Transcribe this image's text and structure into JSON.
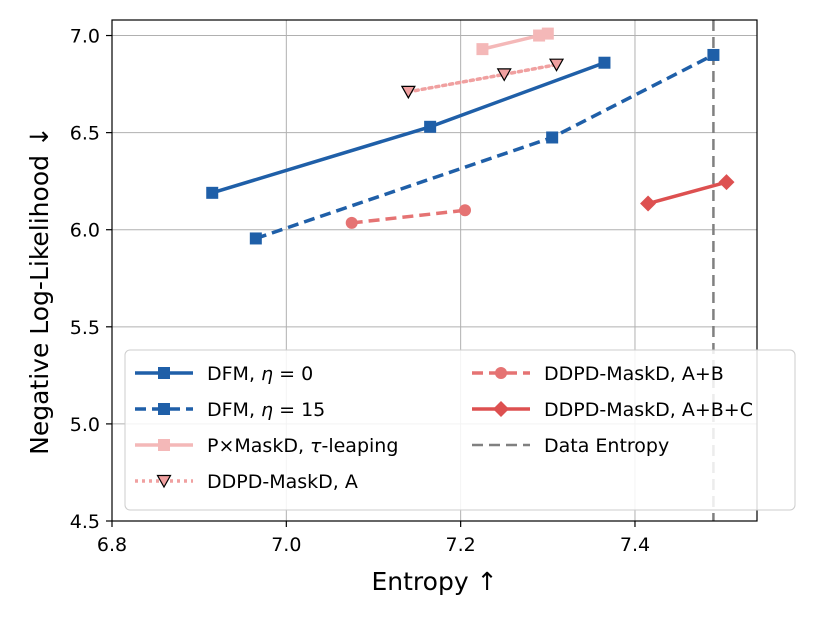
{
  "chart_data": {
    "type": "line",
    "xlabel": "Entropy ↑",
    "ylabel": "Negative Log-Likelihood ↓",
    "xlim": [
      6.8,
      7.54
    ],
    "ylim": [
      4.5,
      7.08
    ],
    "xticks": [
      6.8,
      7.0,
      7.2,
      7.4
    ],
    "xtick_labels": [
      "6.8",
      "7.0",
      "7.2",
      "7.4"
    ],
    "yticks": [
      4.5,
      5.0,
      5.5,
      6.0,
      6.5,
      7.0
    ],
    "ytick_labels": [
      "4.5",
      "5.0",
      "5.5",
      "6.0",
      "6.5",
      "7.0"
    ],
    "grid": true,
    "legend_location": "lower-left",
    "series": [
      {
        "name_parts": [
          "DFM, ",
          "η",
          " = 0"
        ],
        "name_italic": [
          false,
          true,
          false
        ],
        "color": "#1f5fa8",
        "dash": "solid",
        "marker": "square",
        "marker_fill": "#1f5fa8",
        "x": [
          6.915,
          7.165,
          7.365
        ],
        "y": [
          6.19,
          6.53,
          6.86
        ]
      },
      {
        "name_parts": [
          "DFM, ",
          "η",
          " = 15"
        ],
        "name_italic": [
          false,
          true,
          false
        ],
        "color": "#1f5fa8",
        "dash": "dashed",
        "marker": "square",
        "marker_fill": "#1f5fa8",
        "x": [
          6.965,
          7.305,
          7.49
        ],
        "y": [
          5.955,
          6.475,
          6.9
        ]
      },
      {
        "name_parts": [
          "P×MaskD, ",
          "τ",
          "-leaping"
        ],
        "name_italic": [
          false,
          true,
          false
        ],
        "color": "#f4b8b8",
        "dash": "solid",
        "marker": "square",
        "marker_fill": "#f4b8b8",
        "x": [
          7.225,
          7.29,
          7.3
        ],
        "y": [
          6.93,
          7.0,
          7.01
        ]
      },
      {
        "name_parts": [
          "DDPD-MaskD, A"
        ],
        "name_italic": [
          false
        ],
        "color": "#f0a0a0",
        "dash": "dotted",
        "marker": "triangle-down",
        "marker_fill": "#f0a0a0",
        "x": [
          7.14,
          7.25,
          7.31
        ],
        "y": [
          6.71,
          6.8,
          6.85
        ]
      },
      {
        "name_parts": [
          "DDPD-MaskD, A+B"
        ],
        "name_italic": [
          false
        ],
        "color": "#e57373",
        "dash": "dashed",
        "marker": "circle",
        "marker_fill": "#e57373",
        "x": [
          7.075,
          7.205
        ],
        "y": [
          6.035,
          6.1
        ]
      },
      {
        "name_parts": [
          "DDPD-MaskD, A+B+C"
        ],
        "name_italic": [
          false
        ],
        "color": "#dd5050",
        "dash": "solid",
        "marker": "diamond",
        "marker_fill": "#dd5050",
        "x": [
          7.415,
          7.505
        ],
        "y": [
          6.135,
          6.245
        ]
      }
    ],
    "reference_lines": [
      {
        "name": "Data Entropy",
        "orientation": "vertical",
        "x": 7.49,
        "color": "#808080",
        "dash": "dashed"
      }
    ]
  }
}
